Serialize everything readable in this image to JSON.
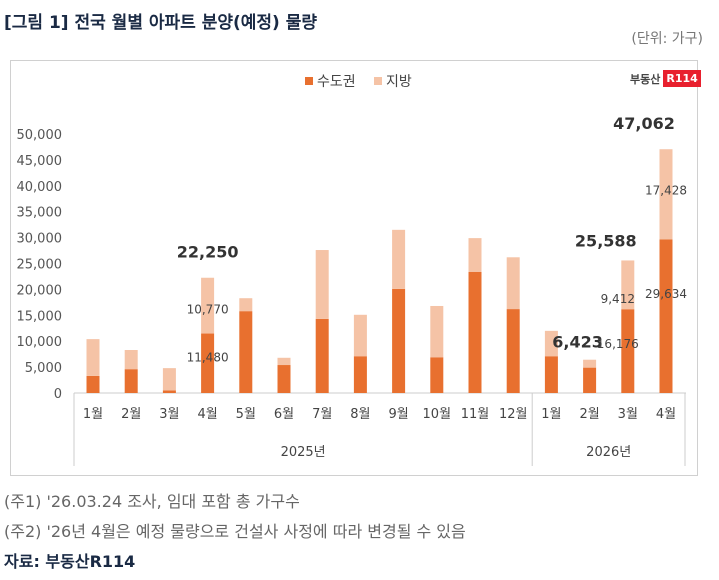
{
  "title": "[그림 1] 전국 월별 아파트 분양(예정) 물량",
  "unit": "(단위: 가구)",
  "logo": {
    "text": "부동산",
    "badge": "R114"
  },
  "notes": [
    "(주1) '26.03.24 조사, 임대 포함 총 가구수",
    "(주2) '26년 4월은 예정 물량으로 건설사 사정에 따라 변경될 수 있음"
  ],
  "source": "자료: 부동산R114",
  "colors": {
    "capital": "#e8702f",
    "local": "#f5c3a6"
  },
  "chart_data": {
    "type": "bar",
    "stacked": true,
    "categories": [
      "1월",
      "2월",
      "3월",
      "4월",
      "5월",
      "6월",
      "7월",
      "8월",
      "9월",
      "10월",
      "11월",
      "12월",
      "1월",
      "2월",
      "3월",
      "4월"
    ],
    "groups": [
      {
        "label": "2025년",
        "count": 12
      },
      {
        "label": "2026년",
        "count": 4
      }
    ],
    "series": [
      {
        "name": "수도권",
        "values": [
          3300,
          4600,
          500,
          11480,
          15800,
          5400,
          14300,
          7100,
          20100,
          6900,
          23400,
          16200,
          7100,
          4900,
          16176,
          29634
        ]
      },
      {
        "name": "지방",
        "values": [
          7100,
          3700,
          4300,
          10770,
          2500,
          1400,
          13300,
          8000,
          11400,
          9900,
          6500,
          10000,
          4900,
          1523,
          9412,
          17428
        ]
      }
    ],
    "yticks": [
      "0",
      "5,000",
      "10,000",
      "15,000",
      "20,000",
      "25,000",
      "30,000",
      "35,000",
      "40,000",
      "45,000",
      "50,000"
    ],
    "ylim": [
      0,
      50000
    ],
    "legend": "top-center",
    "grid": false,
    "annotations": [
      {
        "index": 3,
        "total": "22,250",
        "capital": "11,480",
        "local": "10,770"
      },
      {
        "index": 13,
        "total": "6,423"
      },
      {
        "index": 14,
        "total": "25,588",
        "capital": "16,176",
        "local": "9,412"
      },
      {
        "index": 15,
        "total": "47,062",
        "capital": "29,634",
        "local": "17,428"
      }
    ]
  }
}
